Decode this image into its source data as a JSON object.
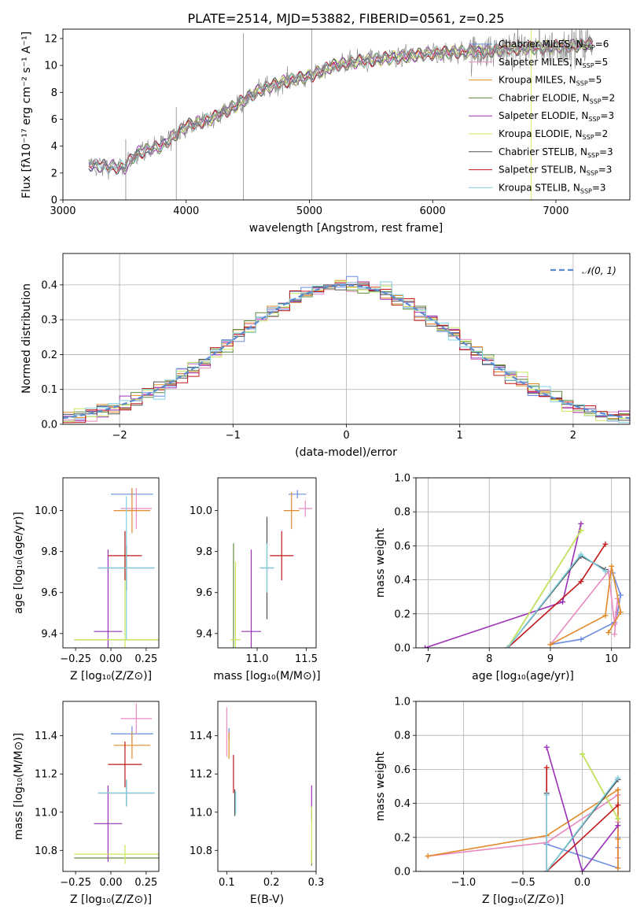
{
  "figure": {
    "title": "PLATE=2514, MJD=53882, FIBERID=0561, z=0.25"
  },
  "colors": {
    "Chabrier MILES": "#6a8be0",
    "Salpeter MILES": "#e88ac0",
    "Kroupa MILES": "#e28a2a",
    "Chabrier ELODIE": "#5e8a3e",
    "Salpeter ELODIE": "#9b30b8",
    "Kroupa ELODIE": "#c8e85a",
    "Chabrier STELIB": "#505050",
    "Salpeter STELIB": "#c01818",
    "Kroupa STELIB": "#80d0e0",
    "spectrum": "#888888"
  },
  "chart_data": [
    {
      "id": "spectrum",
      "type": "line",
      "title": "PLATE=2514, MJD=53882, FIBERID=0561, z=0.25",
      "xlabel": "wavelength [Angstrom, rest frame]",
      "ylabel": "Flux [fλ10⁻¹⁷ erg cm⁻² s⁻¹ A⁻¹]",
      "xlim": [
        3000,
        7600
      ],
      "ylim": [
        0,
        12.7
      ],
      "xticks": [
        3000,
        4000,
        5000,
        6000,
        7000
      ],
      "yticks": [
        0,
        2,
        4,
        6,
        8,
        10,
        12
      ],
      "legend_position": "top-right",
      "legend": [
        {
          "key": "Chabrier MILES",
          "label": "Chabrier MILES, N",
          "sub": "SSP",
          "tail": "=6"
        },
        {
          "key": "Salpeter MILES",
          "label": "Salpeter MILES, N",
          "sub": "SSP",
          "tail": "=5"
        },
        {
          "key": "Kroupa MILES",
          "label": "Kroupa MILES, N",
          "sub": "SSP",
          "tail": "=5"
        },
        {
          "key": "Chabrier ELODIE",
          "label": "Chabrier ELODIE, N",
          "sub": "SSP",
          "tail": "=2"
        },
        {
          "key": "Salpeter ELODIE",
          "label": "Salpeter ELODIE, N",
          "sub": "SSP",
          "tail": "=3"
        },
        {
          "key": "Kroupa ELODIE",
          "label": "Kroupa ELODIE, N",
          "sub": "SSP",
          "tail": "=2"
        },
        {
          "key": "Chabrier STELIB",
          "label": "Chabrier STELIB, N",
          "sub": "SSP",
          "tail": "=3"
        },
        {
          "key": "Salpeter STELIB",
          "label": "Salpeter STELIB, N",
          "sub": "SSP",
          "tail": "=3"
        },
        {
          "key": "Kroupa STELIB",
          "label": "Kroupa STELIB, N",
          "sub": "SSP",
          "tail": "=3"
        }
      ],
      "continuum": [
        [
          3210,
          2.6
        ],
        [
          3500,
          2.4
        ],
        [
          3600,
          3.5
        ],
        [
          3800,
          4.0
        ],
        [
          4000,
          5.5
        ],
        [
          4200,
          6.0
        ],
        [
          4400,
          7.0
        ],
        [
          4600,
          8.2
        ],
        [
          4800,
          8.8
        ],
        [
          5000,
          9.2
        ],
        [
          5200,
          10.0
        ],
        [
          5400,
          10.3
        ],
        [
          5600,
          10.5
        ],
        [
          5800,
          10.7
        ],
        [
          6000,
          10.9
        ],
        [
          6200,
          11.0
        ],
        [
          6400,
          11.0
        ],
        [
          6600,
          11.2
        ],
        [
          6800,
          11.3
        ],
        [
          7000,
          11.4
        ],
        [
          7200,
          11.5
        ],
        [
          7300,
          11.6
        ]
      ],
      "spike_wavelengths": [
        4465,
        5020,
        6800,
        3510,
        3920
      ]
    },
    {
      "id": "residual-histogram",
      "type": "line",
      "xlabel": "(data-model)/error",
      "ylabel": "Normed distribution",
      "xlim": [
        -2.5,
        2.5
      ],
      "ylim": [
        0,
        0.49
      ],
      "xticks": [
        -2,
        -1,
        0,
        1,
        2
      ],
      "yticks": [
        0.0,
        0.1,
        0.2,
        0.3,
        0.4
      ],
      "grid": true,
      "legend_position": "top-right",
      "reference": {
        "name": "𝒩(0, 1)",
        "color": "#5b8bd0",
        "style": "dashed"
      },
      "bin_width": 0.1,
      "bin_start": -2.5
    },
    {
      "id": "age-vs-Z",
      "type": "scatter",
      "xlabel": "Z [log₁₀(Z/Z⊙)]",
      "ylabel": "age  [log₁₀(age/yr)]",
      "xlim": [
        -0.34,
        0.34
      ],
      "ylim": [
        9.33,
        10.16
      ],
      "xticks": [
        -0.25,
        0.0,
        0.25
      ],
      "yticks": [
        9.4,
        9.6,
        9.8,
        10.0
      ],
      "points": [
        {
          "key": "Chabrier MILES",
          "x": 0.15,
          "y": 10.08,
          "xerr": 0.15,
          "yerr": 0.02
        },
        {
          "key": "Salpeter MILES",
          "x": 0.18,
          "y": 10.01,
          "xerr": 0.11,
          "yerr": 0.1
        },
        {
          "key": "Kroupa MILES",
          "x": 0.15,
          "y": 10.0,
          "xerr": 0.13,
          "yerr": 0.11
        },
        {
          "key": "Chabrier ELODIE",
          "x": 0.1,
          "y": 9.37,
          "xerr": 0.36,
          "yerr": 0.0
        },
        {
          "key": "Salpeter ELODIE",
          "x": -0.02,
          "y": 9.41,
          "xerr": 0.1,
          "yerr": 0.4
        },
        {
          "key": "Kroupa ELODIE",
          "x": 0.1,
          "y": 9.37,
          "xerr": 0.36,
          "yerr": 0.43
        },
        {
          "key": "Chabrier STELIB",
          "x": 0.11,
          "y": 9.72,
          "xerr": 0.2,
          "yerr": 0.11
        },
        {
          "key": "Salpeter STELIB",
          "x": 0.1,
          "y": 9.78,
          "xerr": 0.12,
          "yerr": 0.12
        },
        {
          "key": "Kroupa STELIB",
          "x": 0.11,
          "y": 9.72,
          "xerr": 0.2,
          "yerr": 0.35
        }
      ]
    },
    {
      "id": "age-vs-mass",
      "type": "scatter",
      "xlabel": "mass [log₁₀(M/M⊙)]",
      "ylabel": "",
      "xlim": [
        10.6,
        11.6
      ],
      "ylim": [
        9.33,
        10.16
      ],
      "xticks": [
        11.0,
        11.5
      ],
      "yticks": [
        9.4,
        9.6,
        9.8,
        10.0
      ],
      "points": [
        {
          "key": "Chabrier MILES",
          "x": 11.41,
          "y": 10.08,
          "xerr": 0.09,
          "yerr": 0.02
        },
        {
          "key": "Salpeter MILES",
          "x": 11.49,
          "y": 10.01,
          "xerr": 0.07,
          "yerr": 0.04
        },
        {
          "key": "Kroupa MILES",
          "x": 11.35,
          "y": 10.0,
          "xerr": 0.08,
          "yerr": 0.09
        },
        {
          "key": "Chabrier ELODIE",
          "x": 10.76,
          "y": 9.37,
          "xerr": 0.0,
          "yerr": 0.47
        },
        {
          "key": "Salpeter ELODIE",
          "x": 10.94,
          "y": 9.41,
          "xerr": 0.1,
          "yerr": 0.4
        },
        {
          "key": "Kroupa ELODIE",
          "x": 10.78,
          "y": 9.37,
          "xerr": 0.05,
          "yerr": 0.38
        },
        {
          "key": "Chabrier STELIB",
          "x": 11.1,
          "y": 9.72,
          "xerr": 0.07,
          "yerr": 0.25
        },
        {
          "key": "Salpeter STELIB",
          "x": 11.25,
          "y": 9.78,
          "xerr": 0.12,
          "yerr": 0.12
        },
        {
          "key": "Kroupa STELIB",
          "x": 11.1,
          "y": 9.72,
          "xerr": 0.07,
          "yerr": 0.12
        }
      ]
    },
    {
      "id": "massweight-vs-age",
      "type": "line",
      "xlabel": "age  [log₁₀(age/yr)]",
      "ylabel": "mass weight",
      "xlim": [
        6.8,
        10.3
      ],
      "ylim": [
        0,
        1.0
      ],
      "xticks": [
        7,
        8,
        9,
        10
      ],
      "yticks": [
        0.0,
        0.2,
        0.4,
        0.6,
        0.8,
        1.0
      ],
      "grid": true,
      "series": [
        {
          "key": "Chabrier MILES",
          "points": [
            [
              9.0,
              0.02
            ],
            [
              9.5,
              0.05
            ],
            [
              10.05,
              0.15
            ],
            [
              10.1,
              0.21
            ],
            [
              10.15,
              0.31
            ],
            [
              10.02,
              0.44
            ]
          ]
        },
        {
          "key": "Salpeter MILES",
          "points": [
            [
              9.0,
              0.02
            ],
            [
              9.95,
              0.45
            ],
            [
              10.05,
              0.14
            ],
            [
              10.1,
              0.29
            ],
            [
              10.05,
              0.08
            ]
          ]
        },
        {
          "key": "Kroupa MILES",
          "points": [
            [
              9.0,
              0.02
            ],
            [
              9.9,
              0.19
            ],
            [
              10.0,
              0.48
            ],
            [
              10.15,
              0.21
            ],
            [
              9.95,
              0.09
            ]
          ]
        },
        {
          "key": "Chabrier ELODIE",
          "points": [
            [
              8.3,
              0.0
            ],
            [
              9.5,
              0.69
            ]
          ]
        },
        {
          "key": "Salpeter ELODIE",
          "points": [
            [
              6.95,
              0.0
            ],
            [
              9.2,
              0.27
            ],
            [
              9.5,
              0.73
            ]
          ]
        },
        {
          "key": "Kroupa ELODIE",
          "points": [
            [
              8.3,
              0.0
            ],
            [
              9.5,
              0.69
            ]
          ]
        },
        {
          "key": "Chabrier STELIB",
          "points": [
            [
              8.3,
              0.0
            ],
            [
              9.5,
              0.54
            ],
            [
              9.9,
              0.46
            ]
          ]
        },
        {
          "key": "Salpeter STELIB",
          "points": [
            [
              8.3,
              0.0
            ],
            [
              9.5,
              0.39
            ],
            [
              9.9,
              0.61
            ]
          ]
        },
        {
          "key": "Kroupa STELIB",
          "points": [
            [
              8.3,
              0.0
            ],
            [
              9.5,
              0.55
            ],
            [
              9.9,
              0.45
            ]
          ]
        }
      ]
    },
    {
      "id": "mass-vs-Z",
      "type": "scatter",
      "xlabel": "Z [log₁₀(Z/Z⊙)]",
      "ylabel": "mass [log₁₀(M/M⊙)]",
      "xlim": [
        -0.34,
        0.34
      ],
      "ylim": [
        10.69,
        11.58
      ],
      "xticks": [
        -0.25,
        0.0,
        0.25
      ],
      "yticks": [
        10.8,
        11.0,
        11.2,
        11.4
      ],
      "points": [
        {
          "key": "Chabrier MILES",
          "x": 0.15,
          "y": 11.41,
          "xerr": 0.15,
          "yerr": 0.04
        },
        {
          "key": "Salpeter MILES",
          "x": 0.18,
          "y": 11.49,
          "xerr": 0.11,
          "yerr": 0.08
        },
        {
          "key": "Kroupa MILES",
          "x": 0.15,
          "y": 11.35,
          "xerr": 0.13,
          "yerr": 0.07
        },
        {
          "key": "Chabrier ELODIE",
          "x": 0.1,
          "y": 10.76,
          "xerr": 0.36,
          "yerr": 0.0
        },
        {
          "key": "Salpeter ELODIE",
          "x": -0.02,
          "y": 10.94,
          "xerr": 0.1,
          "yerr": 0.2
        },
        {
          "key": "Kroupa ELODIE",
          "x": 0.1,
          "y": 10.78,
          "xerr": 0.36,
          "yerr": 0.05
        },
        {
          "key": "Chabrier STELIB",
          "x": 0.11,
          "y": 11.1,
          "xerr": 0.2,
          "yerr": 0.07
        },
        {
          "key": "Salpeter STELIB",
          "x": 0.1,
          "y": 11.25,
          "xerr": 0.12,
          "yerr": 0.12
        },
        {
          "key": "Kroupa STELIB",
          "x": 0.11,
          "y": 11.1,
          "xerr": 0.2,
          "yerr": 0.07
        }
      ]
    },
    {
      "id": "mass-vs-ebv",
      "type": "scatter",
      "xlabel": "E(B-V)",
      "ylabel": "",
      "xlim": [
        0.08,
        0.3
      ],
      "ylim": [
        10.69,
        11.58
      ],
      "xticks": [
        0.1,
        0.2,
        0.3
      ],
      "yticks": [
        10.8,
        11.0,
        11.2,
        11.4
      ],
      "points": [
        {
          "key": "Chabrier MILES",
          "x": 0.105,
          "y": 11.41,
          "xerr": 0.0,
          "yerr": 0.03
        },
        {
          "key": "Salpeter MILES",
          "x": 0.1,
          "y": 11.42,
          "xerr": 0.0,
          "yerr": 0.13
        },
        {
          "key": "Kroupa MILES",
          "x": 0.105,
          "y": 11.35,
          "xerr": 0.0,
          "yerr": 0.07
        },
        {
          "key": "Chabrier ELODIE",
          "x": 0.29,
          "y": 10.76,
          "xerr": 0.0,
          "yerr": 0.04
        },
        {
          "key": "Salpeter ELODIE",
          "x": 0.29,
          "y": 11.05,
          "xerr": 0.0,
          "yerr": 0.09
        },
        {
          "key": "Kroupa ELODIE",
          "x": 0.29,
          "y": 10.88,
          "xerr": 0.0,
          "yerr": 0.15
        },
        {
          "key": "Chabrier STELIB",
          "x": 0.118,
          "y": 11.05,
          "xerr": 0.0,
          "yerr": 0.07
        },
        {
          "key": "Salpeter STELIB",
          "x": 0.115,
          "y": 11.2,
          "xerr": 0.0,
          "yerr": 0.1
        },
        {
          "key": "Kroupa STELIB",
          "x": 0.12,
          "y": 11.05,
          "xerr": 0.0,
          "yerr": 0.06
        }
      ]
    },
    {
      "id": "massweight-vs-Z",
      "type": "line",
      "xlabel": "Z [log₁₀(Z/Z⊙)]",
      "ylabel": "mass weight",
      "xlim": [
        -1.4,
        0.4
      ],
      "ylim": [
        0,
        1.0
      ],
      "xticks": [
        -1.0,
        -0.5,
        0.0
      ],
      "yticks": [
        0.0,
        0.2,
        0.4,
        0.6,
        0.8,
        1.0
      ],
      "grid": true,
      "series": [
        {
          "key": "Chabrier MILES",
          "points": [
            [
              -0.3,
              0.16
            ],
            [
              0.3,
              0.02
            ],
            [
              0.3,
              0.48
            ],
            [
              0.3,
              0.31
            ],
            [
              0.3,
              0.2
            ],
            [
              0.3,
              0.14
            ]
          ]
        },
        {
          "key": "Salpeter MILES",
          "points": [
            [
              -1.3,
              0.09
            ],
            [
              -0.3,
              0.17
            ],
            [
              0.3,
              0.45
            ],
            [
              0.3,
              0.29
            ],
            [
              0.3,
              0.08
            ]
          ]
        },
        {
          "key": "Kroupa MILES",
          "points": [
            [
              -1.3,
              0.09
            ],
            [
              -0.3,
              0.21
            ],
            [
              0.3,
              0.48
            ],
            [
              0.3,
              0.19
            ],
            [
              0.3,
              0.02
            ]
          ]
        },
        {
          "key": "Chabrier ELODIE",
          "points": [
            [
              0.0,
              0.69
            ],
            [
              0.3,
              0.31
            ]
          ]
        },
        {
          "key": "Salpeter ELODIE",
          "points": [
            [
              -0.3,
              0.73
            ],
            [
              0.0,
              0.0
            ],
            [
              0.3,
              0.27
            ]
          ]
        },
        {
          "key": "Kroupa ELODIE",
          "points": [
            [
              0.0,
              0.69
            ],
            [
              0.3,
              0.31
            ]
          ]
        },
        {
          "key": "Chabrier STELIB",
          "points": [
            [
              -0.3,
              0.46
            ],
            [
              -0.3,
              0.0
            ],
            [
              0.3,
              0.54
            ]
          ]
        },
        {
          "key": "Salpeter STELIB",
          "points": [
            [
              -0.3,
              0.61
            ],
            [
              -0.3,
              0.0
            ],
            [
              0.3,
              0.39
            ]
          ]
        },
        {
          "key": "Kroupa STELIB",
          "points": [
            [
              -0.3,
              0.45
            ],
            [
              -0.3,
              0.0
            ],
            [
              0.3,
              0.55
            ]
          ]
        }
      ]
    }
  ]
}
